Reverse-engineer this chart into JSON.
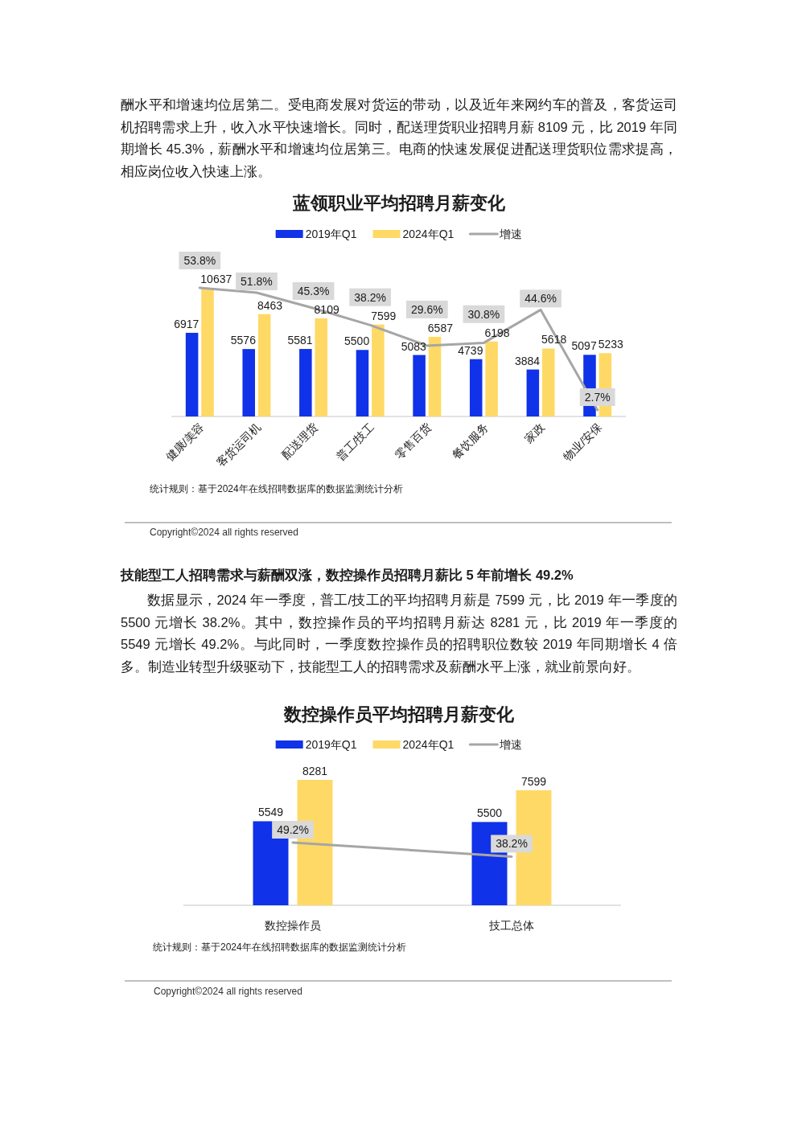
{
  "chart_data": [
    {
      "type": "bar",
      "title": "蓝领职业平均招聘月薪变化",
      "categories": [
        "健康/美容",
        "客货运司机",
        "配送理货",
        "普工/技工",
        "零售百货",
        "餐饮服务",
        "家政",
        "物业/安保"
      ],
      "series": [
        {
          "name": "2019年Q1",
          "color": "#1032e8",
          "values": [
            6917,
            5576,
            5581,
            5500,
            5083,
            4739,
            3884,
            5097
          ],
          "value_labels": [
            "6917",
            "5576",
            "5581",
            "5500",
            "5083",
            "4739",
            "3884",
            "5097"
          ]
        },
        {
          "name": "2024年Q1",
          "color": "#ffd966",
          "values": [
            10637,
            8463,
            8109,
            7599,
            6587,
            6198,
            5618,
            5233
          ],
          "value_labels": [
            "10637",
            "8463",
            "8109",
            "7599",
            "6587",
            "6198",
            "5618",
            "5233"
          ]
        },
        {
          "name": "增速",
          "type": "line",
          "axis": "y2",
          "color": "#a6a6a6",
          "values": [
            53.8,
            51.8,
            45.3,
            38.2,
            29.6,
            30.8,
            44.6,
            2.7
          ],
          "value_labels": [
            "53.8%",
            "51.8%",
            "45.3%",
            "38.2%",
            "29.6%",
            "30.8%",
            "44.6%",
            "2.7%"
          ]
        }
      ],
      "tick_labels": "x",
      "legend": "top",
      "annotations": [
        "酬水平和增速均位居第二。受电商发展对货运的带动，以及近年来网约车的普及，客货运司机招聘需求上升，收入水平快速增长。同时，配送理货职业招聘月薪 8109 元，比 2019 年同期增长 45.3%，薪酬水平和增速均位居第三。电商的快速发展促进配送理货职位需求提高，相应岗位收入快速上涨。",
        "统计规则：基于2024年在线招聘数据库的数据监测统计分析",
        "Copyright©2024 all rights reserved"
      ]
    },
    {
      "type": "bar",
      "title": "数控操作员平均招聘月薪变化",
      "categories": [
        "数控操作员",
        "技工总体"
      ],
      "series": [
        {
          "name": "2019年Q1",
          "color": "#1032e8",
          "values": [
            5549,
            5500
          ],
          "value_labels": [
            "5549",
            "5500"
          ]
        },
        {
          "name": "2024年Q1",
          "color": "#ffd966",
          "values": [
            8281,
            7599
          ],
          "value_labels": [
            "8281",
            "7599"
          ]
        },
        {
          "name": "增速",
          "type": "line",
          "axis": "y2",
          "color": "#a6a6a6",
          "values": [
            49.2,
            38.2
          ],
          "value_labels": [
            "49.2%",
            "38.2%"
          ]
        }
      ],
      "tick_labels": "x",
      "legend": "top",
      "annotations": [
        "技能型工人招聘需求与薪酬双涨，数控操作员招聘月薪比 5 年前增长 49.2%",
        "数据显示，2024 年一季度，普工/技工的平均招聘月薪是 7599 元，比 2019 年一季度的 5500 元增长 38.2%。其中，数控操作员的平均招聘月薪达 8281 元，比 2019 年一季度的 5549 元增长 49.2%。与此同时，一季度数控操作员的招聘职位数较 2019 年同期增长 4 倍多。制造业转型升级驱动下，技能型工人的招聘需求及薪酬水平上涨，就业前景向好。",
        "统计规则：基于2024年在线招聘数据库的数据监测统计分析",
        "Copyright©2024 all rights reserved"
      ]
    }
  ]
}
